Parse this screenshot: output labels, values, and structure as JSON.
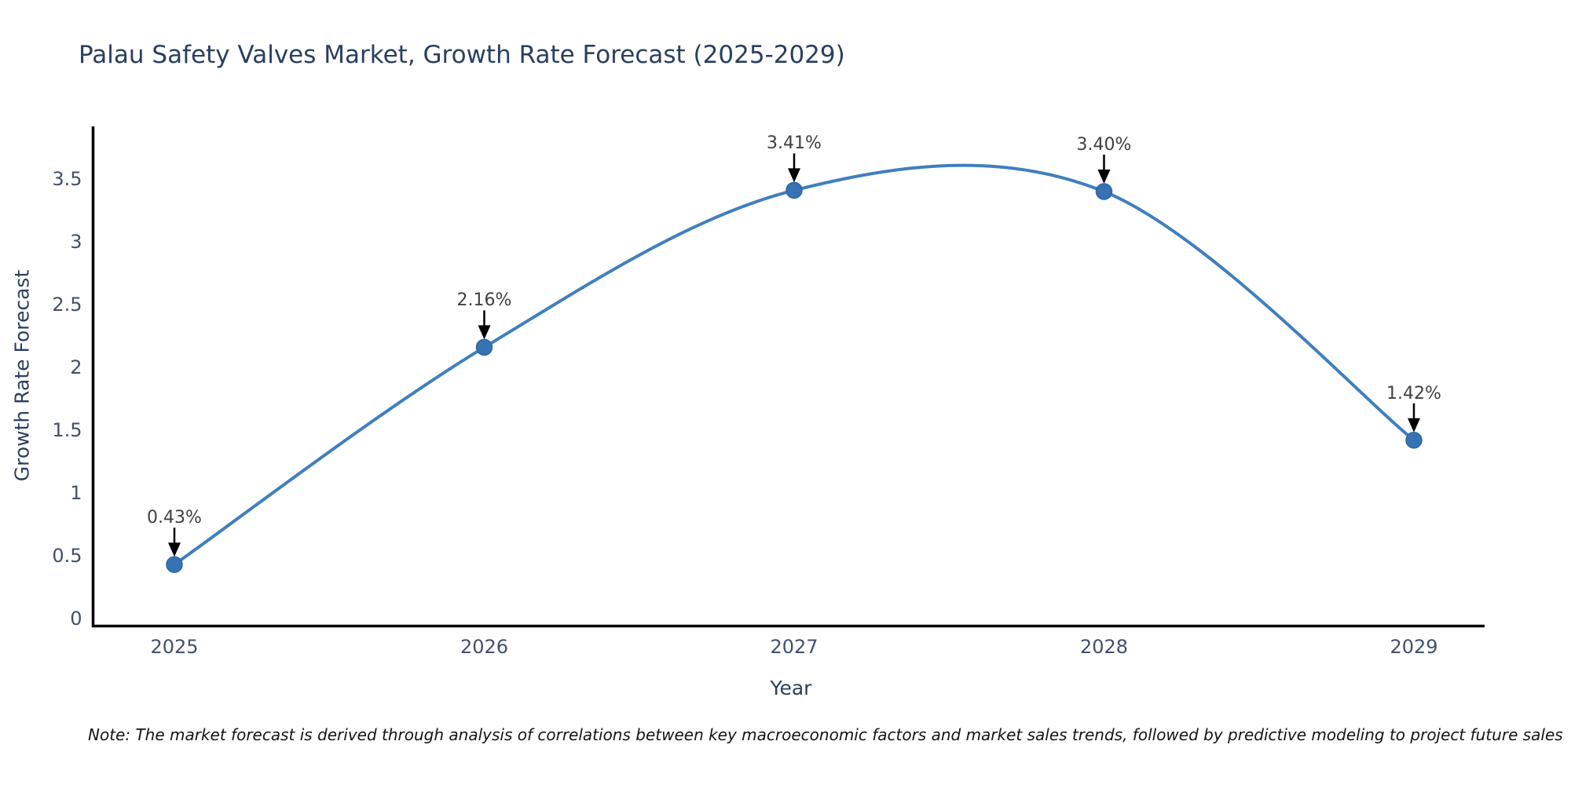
{
  "title": "Palau Safety Valves Market, Growth Rate Forecast (2025-2029)",
  "note": "Note: The market forecast is derived through analysis of correlations between key macroeconomic factors and market sales trends, followed by predictive modeling to project future sales",
  "chart_data": {
    "type": "line",
    "title": "Palau Safety Valves Market, Growth Rate Forecast (2025-2029)",
    "xlabel": "Year",
    "ylabel": "Growth Rate Forecast",
    "x": [
      2025,
      2026,
      2027,
      2028,
      2029
    ],
    "xticklabels": [
      "2025",
      "2026",
      "2027",
      "2028",
      "2029"
    ],
    "series": [
      {
        "name": "Growth Rate Forecast",
        "values": [
          0.43,
          2.16,
          3.41,
          3.4,
          1.42
        ]
      }
    ],
    "point_labels": [
      "0.43%",
      "2.16%",
      "3.41%",
      "3.40%",
      "1.42%"
    ],
    "yticks": [
      0,
      0.5,
      1,
      1.5,
      2,
      2.5,
      3,
      3.5
    ],
    "yticklabels": [
      "0",
      "0.5",
      "1",
      "1.5",
      "2",
      "2.5",
      "3",
      "3.5"
    ],
    "ylim": [
      -0.07,
      3.92
    ],
    "line_shape": "spline",
    "grid": false,
    "legend_position": "none",
    "colors": {
      "line": "#3f7fbe",
      "marker_fill": "#3573b4",
      "marker_edge": "#2e679f",
      "arrow": "#000000",
      "axis_line": "#000000",
      "title_text": "#2a3f5f",
      "tick_text": "#42506b",
      "annotation_text": "#404040",
      "note_text": "#141414",
      "background": "#ffffff"
    }
  }
}
